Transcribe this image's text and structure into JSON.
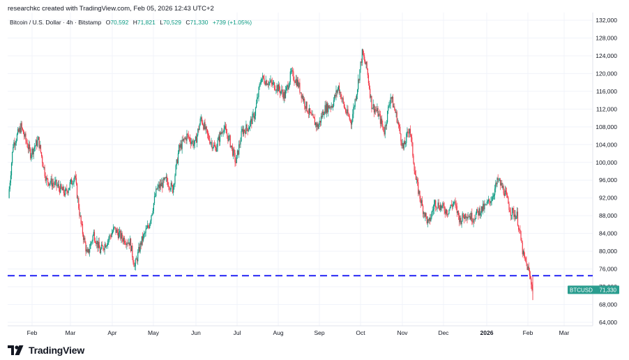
{
  "header": {
    "credit": "researchkc created with TradingView.com, Feb 05, 2026 12:43 UTC+2",
    "symbol": "Bitcoin / U.S. Dollar · 4h · Bitstamp",
    "open_label": "O",
    "open_value": "70,592",
    "high_label": "H",
    "high_value": "71,821",
    "low_label": "L",
    "low_value": "70,529",
    "close_label": "C",
    "close_value": "71,330",
    "change": "+739 (+1.05%)"
  },
  "brand": {
    "name": "TradingView",
    "icon": "tradingview-logo-icon"
  },
  "colors": {
    "up": "#089981",
    "down": "#f23645",
    "level": "#3b3bf5",
    "badge": "#2a9d8f",
    "grid": "#f0f3fa"
  },
  "chart_data": {
    "type": "candlestick",
    "symbol": "BTCUSD",
    "last_price_label": "71,330",
    "y_ticks": [
      "132,000",
      "128,000",
      "124,000",
      "120,000",
      "116,000",
      "112,000",
      "108,000",
      "104,000",
      "100,000",
      "96,000",
      "92,000",
      "88,000",
      "84,000",
      "80,000",
      "76,000",
      "72,000",
      "68,000",
      "64,000"
    ],
    "ylim": [
      63000,
      133500
    ],
    "x_ticks": [
      "Feb",
      "Mar",
      "Apr",
      "May",
      "Jun",
      "Jul",
      "Aug",
      "Sep",
      "Oct",
      "Nov",
      "Dec",
      "2026",
      "Feb",
      "Mar"
    ],
    "bold_x_tick": "2026",
    "horizontal_level": 74500,
    "grid": true,
    "close_path": [
      [
        0,
        92000
      ],
      [
        3,
        104000
      ],
      [
        8,
        108000
      ],
      [
        14,
        102000
      ],
      [
        19,
        105000
      ],
      [
        24,
        96000
      ],
      [
        30,
        95000
      ],
      [
        36,
        93000
      ],
      [
        42,
        97000
      ],
      [
        46,
        86000
      ],
      [
        50,
        79000
      ],
      [
        54,
        84000
      ],
      [
        58,
        80000
      ],
      [
        62,
        82000
      ],
      [
        67,
        85000
      ],
      [
        72,
        83000
      ],
      [
        77,
        82000
      ],
      [
        80,
        76500
      ],
      [
        84,
        82000
      ],
      [
        89,
        86000
      ],
      [
        94,
        94000
      ],
      [
        100,
        96000
      ],
      [
        104,
        94000
      ],
      [
        108,
        103000
      ],
      [
        113,
        106000
      ],
      [
        118,
        104000
      ],
      [
        122,
        110000
      ],
      [
        126,
        106000
      ],
      [
        131,
        103000
      ],
      [
        136,
        108000
      ],
      [
        140,
        105000
      ],
      [
        144,
        100000
      ],
      [
        148,
        107000
      ],
      [
        152,
        108000
      ],
      [
        156,
        111000
      ],
      [
        160,
        119000
      ],
      [
        165,
        118000
      ],
      [
        170,
        117000
      ],
      [
        175,
        115000
      ],
      [
        179,
        120000
      ],
      [
        183,
        118000
      ],
      [
        188,
        113000
      ],
      [
        192,
        110000
      ],
      [
        196,
        108000
      ],
      [
        200,
        112000
      ],
      [
        205,
        113000
      ],
      [
        209,
        117000
      ],
      [
        213,
        112000
      ],
      [
        217,
        109000
      ],
      [
        221,
        117000
      ],
      [
        224,
        124500
      ],
      [
        227,
        121000
      ],
      [
        230,
        113000
      ],
      [
        234,
        111000
      ],
      [
        238,
        107000
      ],
      [
        242,
        115000
      ],
      [
        246,
        110000
      ],
      [
        250,
        103000
      ],
      [
        254,
        108000
      ],
      [
        258,
        96000
      ],
      [
        262,
        90000
      ],
      [
        266,
        86000
      ],
      [
        270,
        91000
      ],
      [
        274,
        90000
      ],
      [
        278,
        89000
      ],
      [
        282,
        91000
      ],
      [
        286,
        87000
      ],
      [
        290,
        88500
      ],
      [
        294,
        87500
      ],
      [
        298,
        89000
      ],
      [
        302,
        90000
      ],
      [
        306,
        92000
      ],
      [
        310,
        96000
      ],
      [
        314,
        93500
      ],
      [
        318,
        89000
      ],
      [
        322,
        88000
      ],
      [
        326,
        79000
      ],
      [
        329,
        76000
      ],
      [
        332,
        71330
      ]
    ]
  }
}
